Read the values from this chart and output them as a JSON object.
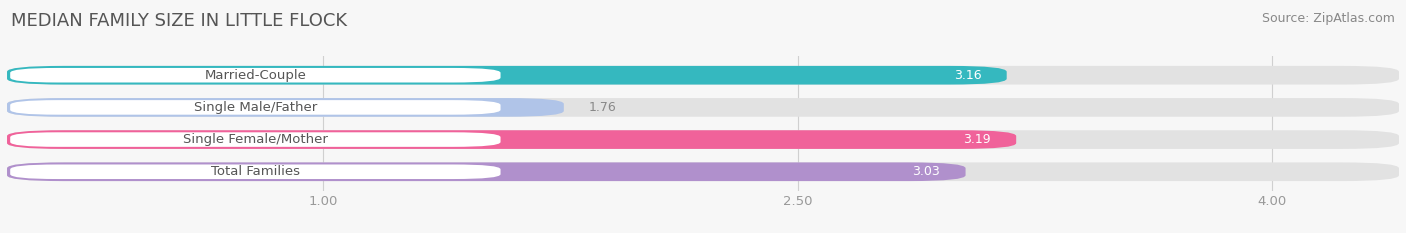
{
  "title": "MEDIAN FAMILY SIZE IN LITTLE FLOCK",
  "source": "Source: ZipAtlas.com",
  "categories": [
    "Married-Couple",
    "Single Male/Father",
    "Single Female/Mother",
    "Total Families"
  ],
  "values": [
    3.16,
    1.76,
    3.19,
    3.03
  ],
  "bar_colors": [
    "#35b8bf",
    "#b0c4e8",
    "#f0629a",
    "#b090cc"
  ],
  "xlim_left": 0.0,
  "xlim_right": 4.4,
  "xticks": [
    1.0,
    2.5,
    4.0
  ],
  "xtick_labels": [
    "1.00",
    "2.50",
    "4.00"
  ],
  "background_color": "#f7f7f7",
  "bar_background_color": "#e2e2e2",
  "bar_height": 0.58,
  "label_pill_color": "#ffffff",
  "title_fontsize": 13,
  "cat_fontsize": 9.5,
  "value_fontsize": 9,
  "source_fontsize": 9,
  "title_color": "#555555",
  "source_color": "#888888",
  "cat_text_color": "#555555",
  "value_inside_color": "#ffffff",
  "value_outside_color": "#888888"
}
